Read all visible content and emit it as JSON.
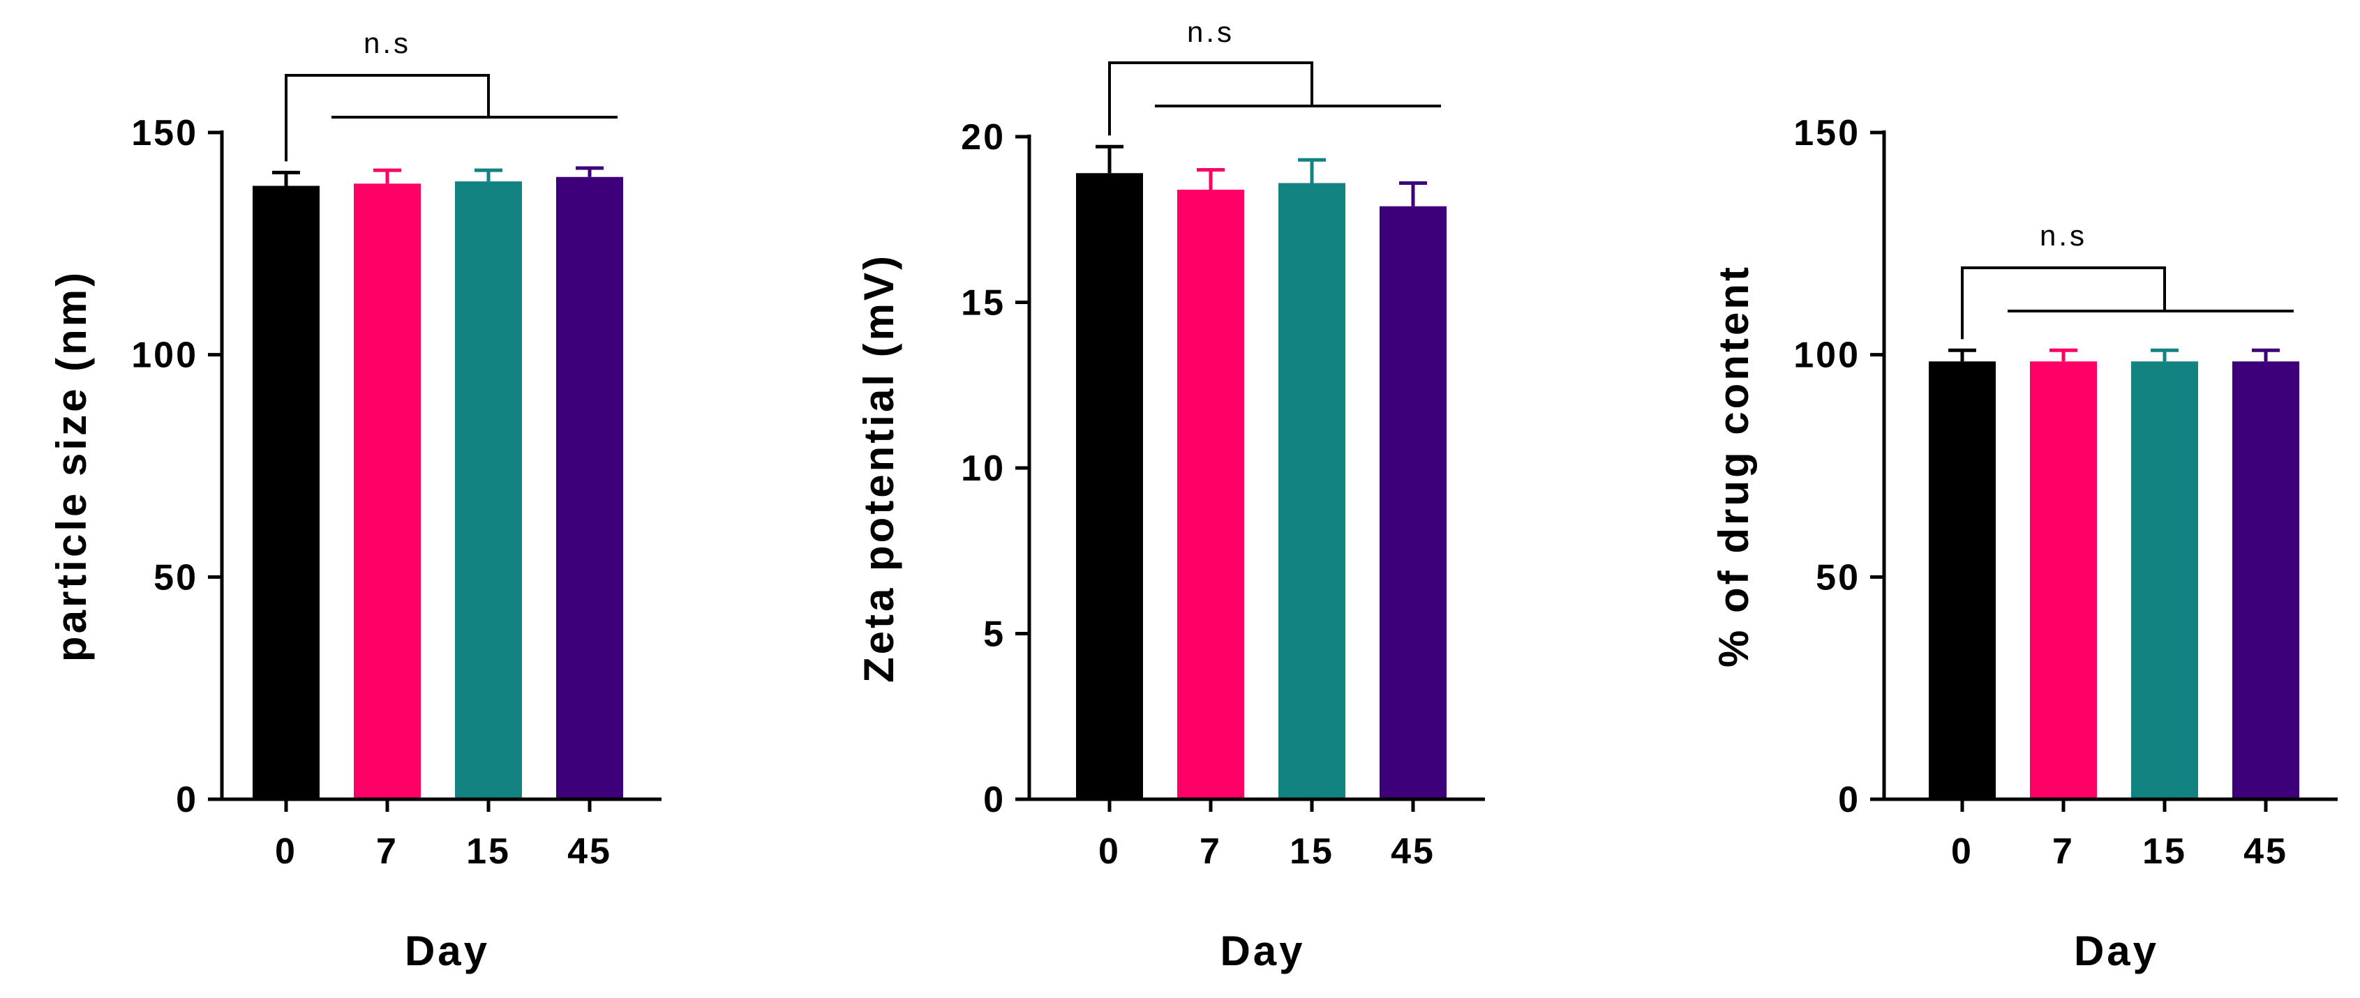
{
  "chart_data": [
    {
      "type": "bar",
      "categories": [
        "0",
        "7",
        "15",
        "45"
      ],
      "values": [
        138,
        138.5,
        139,
        140
      ],
      "errors": [
        3,
        3,
        2.5,
        2
      ],
      "colors": [
        "#000000",
        "#ff0066",
        "#138382",
        "#3d007a"
      ],
      "xlabel": "Day",
      "ylabel": "particle size (nm)",
      "ylim": [
        0,
        150
      ],
      "yticks": [
        0,
        50,
        100,
        150
      ],
      "significance": {
        "label": "n.s",
        "reference": "0",
        "compared": [
          "7",
          "15",
          "45"
        ]
      }
    },
    {
      "type": "bar",
      "categories": [
        "0",
        "7",
        "15",
        "45"
      ],
      "values": [
        18.9,
        18.4,
        18.6,
        17.9
      ],
      "errors": [
        0.8,
        0.6,
        0.7,
        0.7
      ],
      "colors": [
        "#000000",
        "#ff0066",
        "#138382",
        "#3d007a"
      ],
      "xlabel": "Day",
      "ylabel": "Zeta potential (mV)",
      "ylim": [
        0,
        20
      ],
      "yticks": [
        0,
        5,
        10,
        15,
        20
      ],
      "significance": {
        "label": "n.s",
        "reference": "0",
        "compared": [
          "7",
          "15",
          "45"
        ]
      }
    },
    {
      "type": "bar",
      "categories": [
        "0",
        "7",
        "15",
        "45"
      ],
      "values": [
        98.5,
        98.5,
        98.5,
        98.5
      ],
      "errors": [
        2.5,
        2.5,
        2.5,
        2.5
      ],
      "colors": [
        "#000000",
        "#ff0066",
        "#138382",
        "#3d007a"
      ],
      "xlabel": "Day",
      "ylabel": "% of drug content",
      "ylim": [
        0,
        150
      ],
      "yticks": [
        0,
        50,
        100,
        150
      ],
      "significance": {
        "label": "n.s",
        "reference": "0",
        "compared": [
          "7",
          "15",
          "45"
        ]
      }
    }
  ]
}
